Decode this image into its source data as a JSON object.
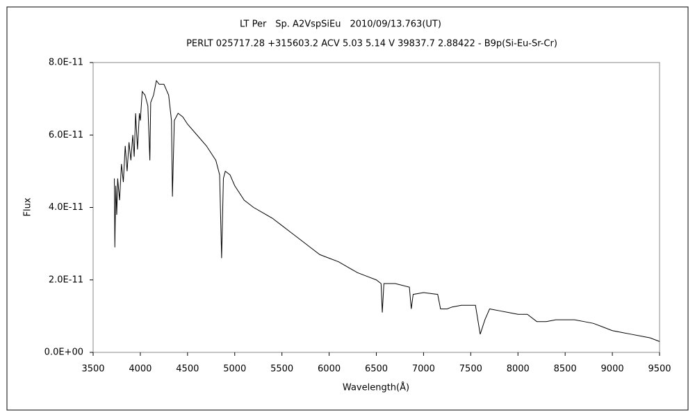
{
  "chart_data": {
    "type": "line",
    "title": "LT Per　Sp. A2VspSiEu　2010/09/13.763(UT)",
    "subtitle": "PERLT 025717.28 +315603.2 ACV 5.03 5.14 V 39837.7 2.88422 - B9p(Si-Eu-Sr-Cr)",
    "x_label": "Wavelength(Å)",
    "y_label": "Flux",
    "xlim": [
      3500,
      9500
    ],
    "xticks": [
      3500,
      4000,
      4500,
      5000,
      5500,
      6000,
      6500,
      7000,
      7500,
      8000,
      8500,
      9000,
      9500
    ],
    "ylim": [
      0,
      8e-11
    ],
    "yticks": [
      {
        "value": 0,
        "label": "0.0E+00"
      },
      {
        "value": 2e-11,
        "label": "2.0E-11"
      },
      {
        "value": 4e-11,
        "label": "4.0E-11"
      },
      {
        "value": 6e-11,
        "label": "6.0E-11"
      },
      {
        "value": 8e-11,
        "label": "8.0E-11"
      }
    ],
    "grid": false,
    "color": "#000000",
    "x": [
      3725,
      3730,
      3740,
      3750,
      3760,
      3780,
      3800,
      3820,
      3840,
      3860,
      3880,
      3900,
      3920,
      3935,
      3950,
      3970,
      3990,
      4000,
      4020,
      4050,
      4080,
      4101,
      4110,
      4140,
      4170,
      4200,
      4250,
      4300,
      4330,
      4340,
      4360,
      4400,
      4450,
      4500,
      4600,
      4700,
      4800,
      4840,
      4861,
      4880,
      4900,
      4950,
      5000,
      5100,
      5200,
      5300,
      5400,
      5500,
      5600,
      5700,
      5800,
      5900,
      6000,
      6100,
      6200,
      6300,
      6400,
      6500,
      6550,
      6563,
      6580,
      6700,
      6850,
      6870,
      6890,
      7000,
      7150,
      7180,
      7250,
      7300,
      7400,
      7550,
      7600,
      7650,
      7700,
      7800,
      7900,
      8000,
      8100,
      8200,
      8300,
      8400,
      8500,
      8600,
      8700,
      8800,
      8900,
      9000,
      9100,
      9200,
      9300,
      9400,
      9500
    ],
    "values": [
      4.8e-11,
      2.9e-11,
      4.6e-11,
      3.8e-11,
      4.8e-11,
      4.2e-11,
      5.2e-11,
      4.7e-11,
      5.7e-11,
      5e-11,
      5.8e-11,
      5.3e-11,
      6e-11,
      5.4e-11,
      6.6e-11,
      5.6e-11,
      6.6e-11,
      6.4e-11,
      7.2e-11,
      7.1e-11,
      6.8e-11,
      5.3e-11,
      6.9e-11,
      7.1e-11,
      7.5e-11,
      7.4e-11,
      7.4e-11,
      7.1e-11,
      6.4e-11,
      4.3e-11,
      6.4e-11,
      6.6e-11,
      6.5e-11,
      6.3e-11,
      6e-11,
      5.7e-11,
      5.3e-11,
      4.9e-11,
      2.6e-11,
      4.8e-11,
      5e-11,
      4.9e-11,
      4.6e-11,
      4.2e-11,
      4e-11,
      3.85e-11,
      3.7e-11,
      3.5e-11,
      3.3e-11,
      3.1e-11,
      2.9e-11,
      2.7e-11,
      2.6e-11,
      2.5e-11,
      2.35e-11,
      2.2e-11,
      2.1e-11,
      2e-11,
      1.9e-11,
      1.1e-11,
      1.9e-11,
      1.9e-11,
      1.8e-11,
      1.2e-11,
      1.6e-11,
      1.65e-11,
      1.6e-11,
      1.2e-11,
      1.2e-11,
      1.25e-11,
      1.3e-11,
      1.3e-11,
      5e-12,
      9e-12,
      1.2e-11,
      1.15e-11,
      1.1e-11,
      1.05e-11,
      1.05e-11,
      8.5e-12,
      8.5e-12,
      9e-12,
      9e-12,
      9e-12,
      8.5e-12,
      8e-12,
      7e-12,
      6e-12,
      5.5e-12,
      5e-12,
      4.5e-12,
      4e-12,
      3e-12
    ]
  }
}
